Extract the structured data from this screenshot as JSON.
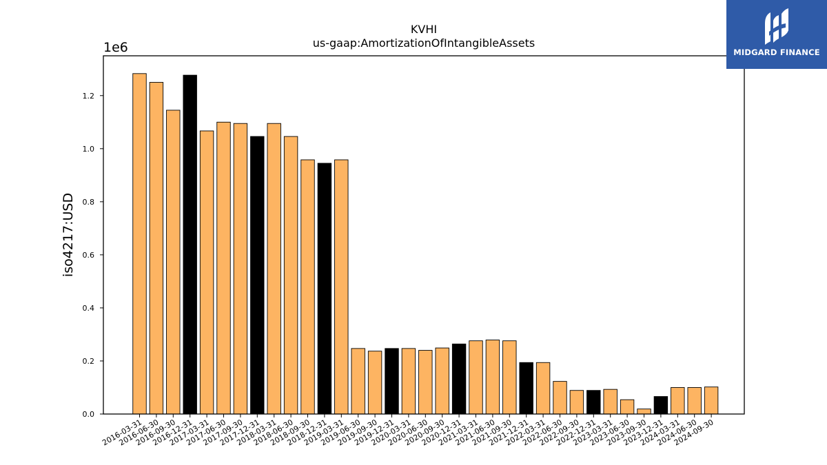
{
  "chart_data": {
    "type": "bar",
    "title": "KVHI",
    "subtitle": "us-gaap:AmortizationOfIntangibleAssets",
    "ylabel": "iso4217:USD",
    "xlabel": "",
    "y_multiplier": "1e6",
    "ylim": [
      0,
      1.35
    ],
    "yticks": [
      "0.0",
      "0.2",
      "0.4",
      "0.6",
      "0.8",
      "1.0",
      "1.2"
    ],
    "grid": false,
    "colors": {
      "quarter": "#fdb462",
      "year_end": "#000000",
      "edge": "#000000"
    },
    "categories": [
      "2016-03-31",
      "2016-06-30",
      "2016-09-30",
      "2016-12-31",
      "2017-03-31",
      "2017-06-30",
      "2017-09-30",
      "2017-12-31",
      "2018-03-31",
      "2018-06-30",
      "2018-09-30",
      "2018-12-31",
      "2019-03-31",
      "2019-06-30",
      "2019-09-30",
      "2019-12-31",
      "2020-03-31",
      "2020-06-30",
      "2020-09-30",
      "2020-12-31",
      "2021-03-31",
      "2021-06-30",
      "2021-09-30",
      "2021-12-31",
      "2022-03-31",
      "2022-06-30",
      "2022-09-30",
      "2022-12-31",
      "2023-03-31",
      "2023-06-30",
      "2023-09-30",
      "2023-12-31",
      "2024-03-31",
      "2024-06-30",
      "2024-09-30"
    ],
    "values": [
      1.283,
      1.25,
      1.145,
      1.277,
      1.067,
      1.1,
      1.095,
      1.046,
      1.095,
      1.046,
      0.958,
      0.945,
      0.958,
      0.247,
      0.237,
      0.247,
      0.247,
      0.24,
      0.249,
      0.264,
      0.276,
      0.279,
      0.276,
      0.194,
      0.194,
      0.123,
      0.089,
      0.089,
      0.093,
      0.054,
      0.019,
      0.066,
      0.1,
      0.1,
      0.102
    ],
    "highlight": [
      false,
      false,
      false,
      true,
      false,
      false,
      false,
      true,
      false,
      false,
      false,
      true,
      false,
      false,
      false,
      true,
      false,
      false,
      false,
      true,
      false,
      false,
      false,
      true,
      false,
      false,
      false,
      true,
      false,
      false,
      false,
      true,
      false,
      false,
      false
    ]
  },
  "logo": {
    "text": "MIDGARD FINANCE",
    "icon": "midgard-logo-icon",
    "background": "#2f5ba8"
  }
}
